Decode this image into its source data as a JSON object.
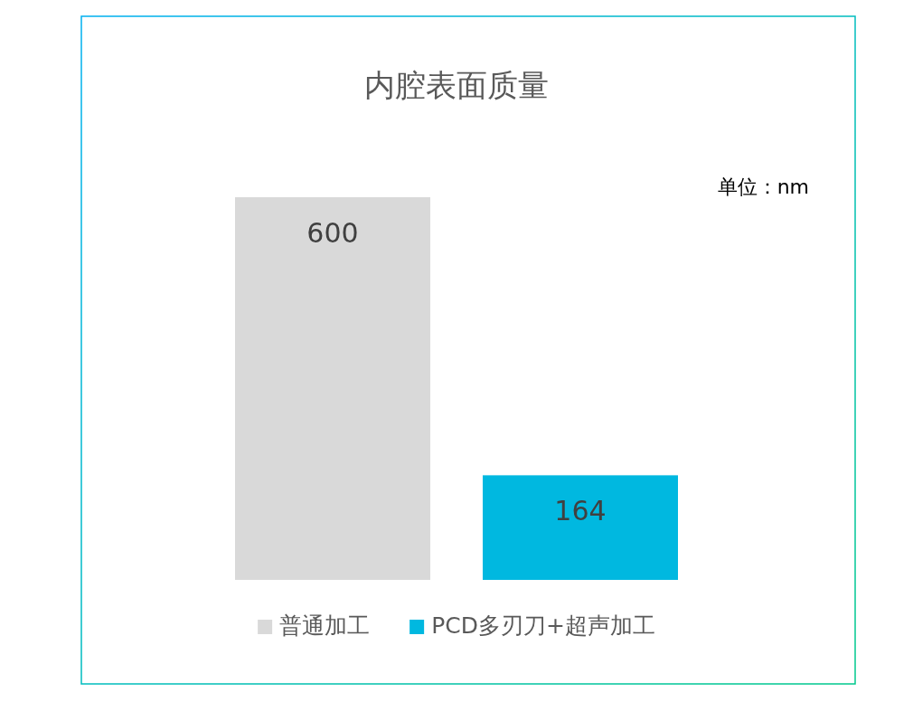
{
  "chart_data": {
    "type": "bar",
    "title": "内腔表面质量",
    "categories": [
      null
    ],
    "series": [
      {
        "name": "普通加工",
        "color": "#d9d9d9",
        "values": [
          600
        ]
      },
      {
        "name": "PCD多刃刀+超声加工",
        "color": "#00b8e0",
        "values": [
          164
        ]
      }
    ],
    "data_labels": true,
    "legend": "bottom",
    "annotations": [
      "单位：nm"
    ]
  }
}
